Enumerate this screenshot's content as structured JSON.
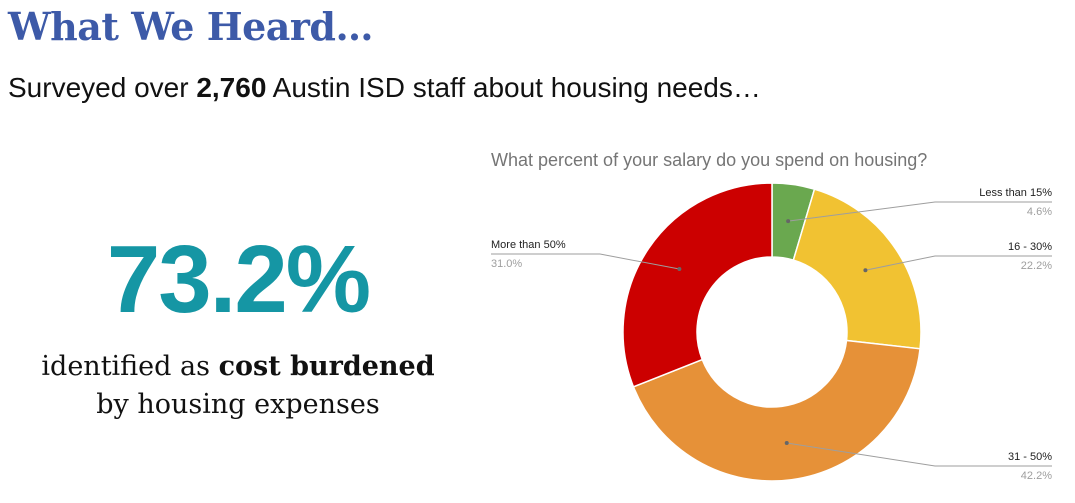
{
  "header": {
    "title": "What We Heard…",
    "subtitle_prefix": "Surveyed over ",
    "subtitle_bold": "2,760",
    "subtitle_suffix": " Austin ISD staff about housing needs…"
  },
  "stat": {
    "value": "73.2%",
    "caption_prefix": "identified as ",
    "caption_bold": "cost burdened",
    "caption_line2": "by housing expenses"
  },
  "chart_data": {
    "type": "pie",
    "donut": true,
    "title": "What percent of your salary do you spend on housing?",
    "legend": "none",
    "slices": [
      {
        "label": "Less than 15%",
        "value": 4.6,
        "value_label": "4.6%",
        "color": "#6aa84f"
      },
      {
        "label": "16 - 30%",
        "value": 22.2,
        "value_label": "22.2%",
        "color": "#f1c232"
      },
      {
        "label": "31 - 50%",
        "value": 42.2,
        "value_label": "42.2%",
        "color": "#e69138"
      },
      {
        "label": "More than 50%",
        "value": 31.0,
        "value_label": "31.0%",
        "color": "#cc0000"
      }
    ]
  },
  "colors": {
    "title": "#3d5aa8",
    "stat": "#1596a4"
  }
}
